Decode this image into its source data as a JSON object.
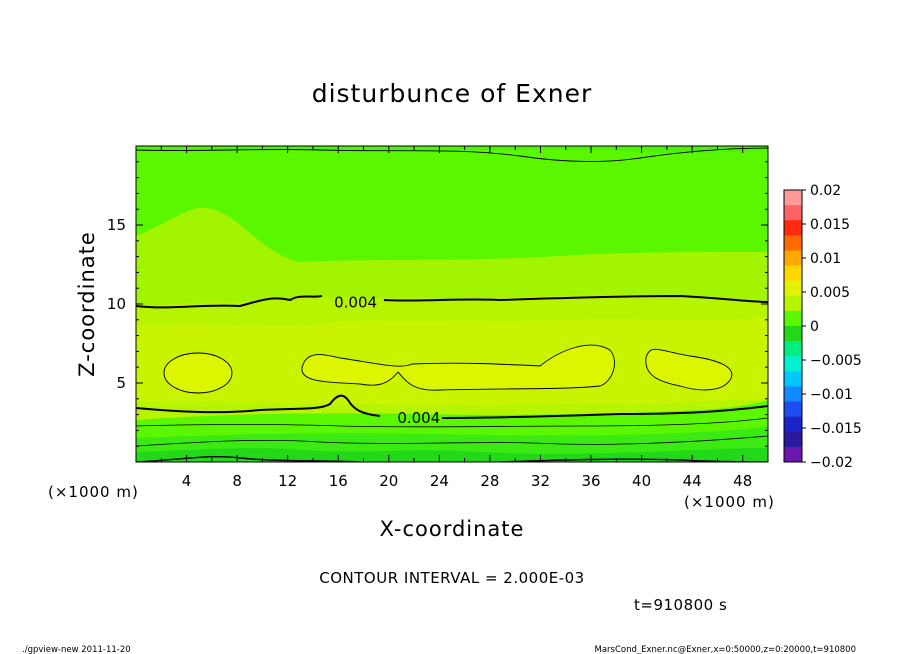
{
  "chart_data": {
    "type": "heatmap",
    "title": "disturbunce of Exner",
    "xlabel": "X-coordinate",
    "ylabel": "Z-coordinate",
    "x_unit_left": "(×1000 m)",
    "x_unit_right": "(×1000 m)",
    "xlim": [
      0,
      50
    ],
    "ylim": [
      0,
      20
    ],
    "xticks": [
      "4",
      "8",
      "12",
      "16",
      "20",
      "24",
      "28",
      "32",
      "36",
      "40",
      "44",
      "48"
    ],
    "yticks": [
      "5",
      "10",
      "15"
    ],
    "colorbar": {
      "labels": [
        "0.02",
        "0.015",
        "0.01",
        "0.005",
        "0",
        "−0.005",
        "−0.01",
        "−0.015",
        "−0.02"
      ],
      "min": -0.02,
      "max": 0.02
    },
    "contour_labels": [
      {
        "text": "0.004",
        "x": 15.0,
        "z": 10.1
      },
      {
        "text": "0.004",
        "x": 20.0,
        "z": 2.8
      }
    ],
    "contour_interval_text": "CONTOUR INTERVAL = 2.000E-03",
    "time_text": "t=910800 s",
    "footer_left": "./gpview-new   2011-11-20",
    "footer_right": "MarsCond_Exner.nc@Exner,x=0:50000,z=0:20000,t=910800",
    "colors": {
      "dark_green": "#22d818",
      "green": "#3aea12",
      "light_green": "#5af700",
      "yellow_green": "#b6f400",
      "yellow": "#dcf600"
    }
  }
}
